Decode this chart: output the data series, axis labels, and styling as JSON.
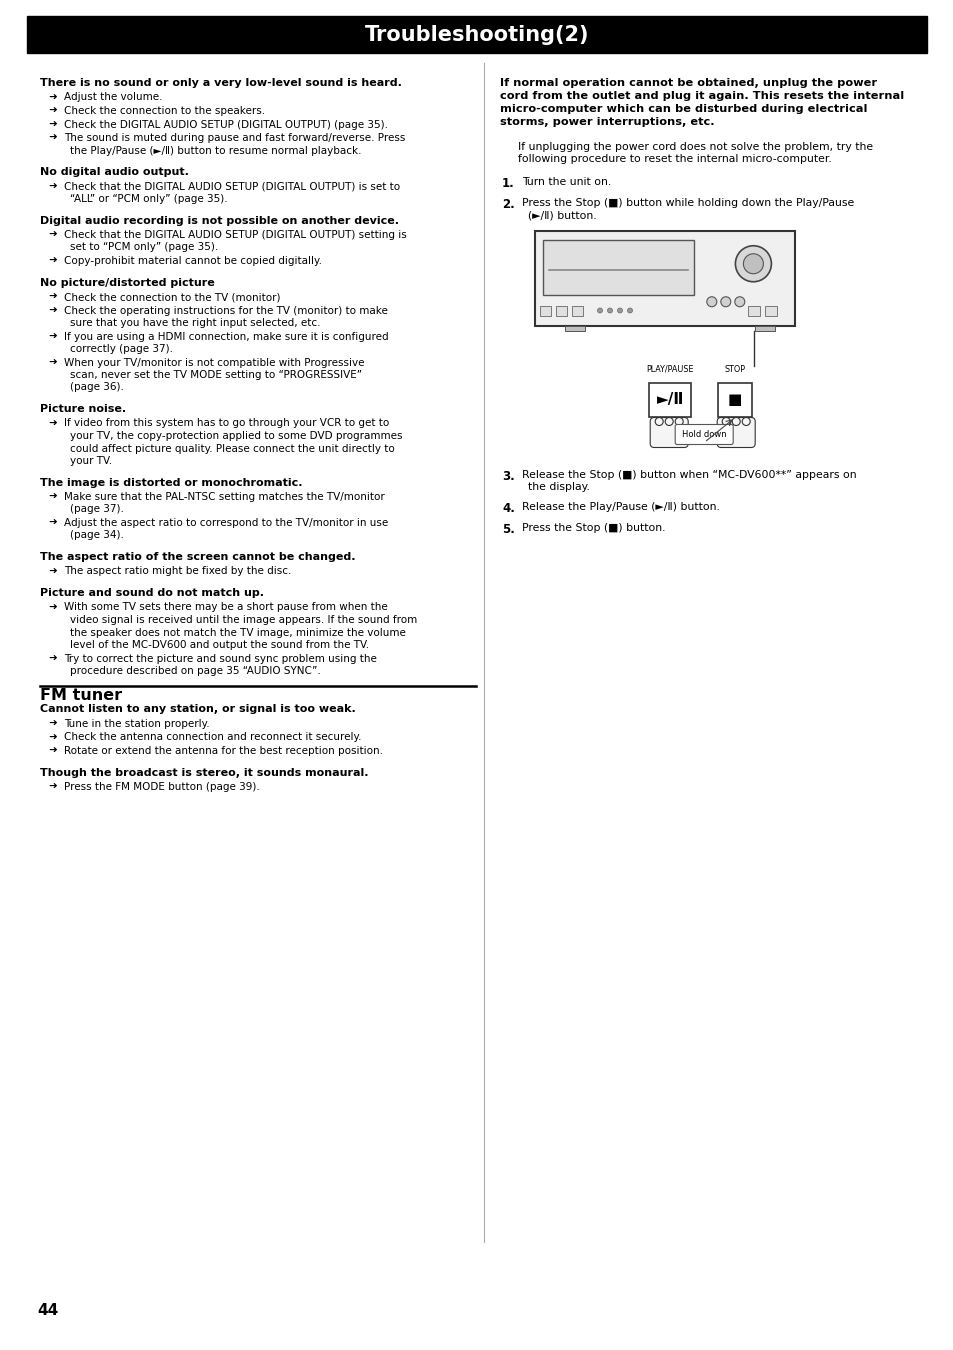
{
  "title": "Troubleshooting(2)",
  "page_number": "44",
  "bg_color": "#ffffff",
  "title_bg": "#000000",
  "title_color": "#ffffff",
  "left_col_items": [
    {
      "type": "heading",
      "text": "There is no sound or only a very low-level sound is heard."
    },
    {
      "type": "bullet",
      "text": "Adjust the volume."
    },
    {
      "type": "bullet",
      "text": "Check the connection to the speakers."
    },
    {
      "type": "bullet",
      "text": "Check the DIGITAL AUDIO SETUP (DIGITAL OUTPUT) (page 35)."
    },
    {
      "type": "bullet",
      "text": "The sound is muted during pause and fast forward/reverse. Press\nthe Play/Pause (►/Ⅱ) button to resume normal playback."
    },
    {
      "type": "gap"
    },
    {
      "type": "heading",
      "text": "No digital audio output."
    },
    {
      "type": "bullet",
      "text": "Check that the DIGITAL AUDIO SETUP (DIGITAL OUTPUT) is set to\n“ALL” or “PCM only” (page 35)."
    },
    {
      "type": "gap"
    },
    {
      "type": "heading",
      "text": "Digital audio recording is not possible on another device."
    },
    {
      "type": "bullet",
      "text": "Check that the DIGITAL AUDIO SETUP (DIGITAL OUTPUT) setting is\nset to “PCM only” (page 35)."
    },
    {
      "type": "bullet",
      "text": "Copy-prohibit material cannot be copied digitally."
    },
    {
      "type": "gap"
    },
    {
      "type": "heading",
      "text": "No picture/distorted picture"
    },
    {
      "type": "bullet",
      "text": "Check the connection to the TV (monitor)"
    },
    {
      "type": "bullet",
      "text": "Check the operating instructions for the TV (monitor) to make\nsure that you have the right input selected, etc."
    },
    {
      "type": "bullet",
      "text": "If you are using a HDMI connection, make sure it is configured\ncorrectly (page 37)."
    },
    {
      "type": "bullet",
      "text": "When your TV/monitor is not compatible with Progressive\nscan, never set the TV MODE setting to “PROGRESSIVE”\n(page 36)."
    },
    {
      "type": "gap"
    },
    {
      "type": "heading",
      "text": "Picture noise."
    },
    {
      "type": "bullet",
      "text": "If video from this system has to go through your VCR to get to\nyour TV, the copy-protection applied to some DVD programmes\ncould affect picture quality. Please connect the unit directly to\nyour TV."
    },
    {
      "type": "gap"
    },
    {
      "type": "heading",
      "text": "The image is distorted or monochromatic."
    },
    {
      "type": "bullet",
      "text": "Make sure that the PAL-NTSC setting matches the TV/monitor\n(page 37)."
    },
    {
      "type": "bullet",
      "text": "Adjust the aspect ratio to correspond to the TV/monitor in use\n(page 34)."
    },
    {
      "type": "gap"
    },
    {
      "type": "heading",
      "text": "The aspect ratio of the screen cannot be changed."
    },
    {
      "type": "bullet",
      "text": "The aspect ratio might be fixed by the disc."
    },
    {
      "type": "gap"
    },
    {
      "type": "heading",
      "text": "Picture and sound do not match up."
    },
    {
      "type": "bullet",
      "text": "With some TV sets there may be a short pause from when the\nvideo signal is received until the image appears. If the sound from\nthe speaker does not match the TV image, minimize the volume\nlevel of the MC-DV600 and output the sound from the TV."
    },
    {
      "type": "bullet",
      "text": "Try to correct the picture and sound sync problem using the\nprocedure described on page 35 “AUDIO SYNC”."
    }
  ],
  "fm_heading": "FM tuner",
  "fm_items": [
    {
      "type": "heading",
      "text": "Cannot listen to any station, or signal is too weak."
    },
    {
      "type": "bullet",
      "text": "Tune in the station properly."
    },
    {
      "type": "bullet",
      "text": "Check the antenna connection and reconnect it securely."
    },
    {
      "type": "bullet",
      "text": "Rotate or extend the antenna for the best reception position."
    },
    {
      "type": "gap"
    },
    {
      "type": "heading",
      "text": "Though the broadcast is stereo, it sounds monaural."
    },
    {
      "type": "bullet",
      "text": "Press the FM MODE button (page 39)."
    }
  ],
  "right_bold_text": "If normal operation cannot be obtained, unplug the power\ncord from the outlet and plug it again. This resets the internal\nmicro-computer which can be disturbed during electrical\nstorms, power interruptions, etc.",
  "right_mid_text": "If unplugging the power cord does not solve the problem, try the\nfollowing procedure to reset the internal micro-computer.",
  "steps": [
    {
      "num": "1.",
      "text": "Turn the unit on."
    },
    {
      "num": "2.",
      "text": "Press the Stop (■) button while holding down the Play/Pause\n(►/Ⅱ) button."
    },
    {
      "num": "3.",
      "text": "Release the Stop (■) button when “MC-DV600**” appears on\nthe display."
    },
    {
      "num": "4.",
      "text": "Release the Play/Pause (►/Ⅱ) button."
    },
    {
      "num": "5.",
      "text": "Press the Stop (■) button."
    }
  ]
}
